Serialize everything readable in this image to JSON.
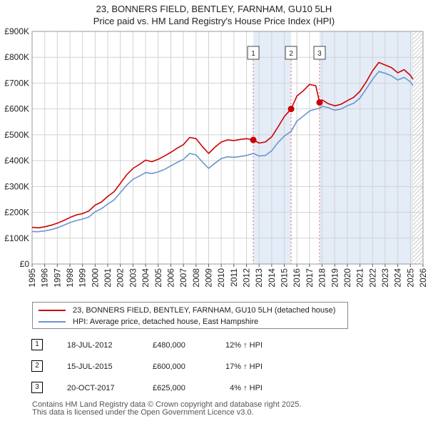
{
  "chart_data": {
    "type": "line",
    "title": "23, BONNERS FIELD, BENTLEY, FARNHAM, GU10 5LH",
    "subtitle": "Price paid vs. HM Land Registry's House Price Index (HPI)",
    "xlim": [
      1995,
      2026
    ],
    "ylim": [
      0,
      900000
    ],
    "y_ticks": [
      0,
      100000,
      200000,
      300000,
      400000,
      500000,
      600000,
      700000,
      800000,
      900000
    ],
    "y_tick_labels": [
      "£0",
      "£100K",
      "£200K",
      "£300K",
      "£400K",
      "£500K",
      "£600K",
      "£700K",
      "£800K",
      "£900K"
    ],
    "x_ticks": [
      1995,
      1996,
      1997,
      1998,
      1999,
      2000,
      2001,
      2002,
      2003,
      2004,
      2005,
      2006,
      2007,
      2008,
      2009,
      2010,
      2011,
      2012,
      2013,
      2014,
      2015,
      2016,
      2017,
      2018,
      2019,
      2020,
      2021,
      2022,
      2023,
      2024,
      2025,
      2026
    ],
    "x_tick_labels": [
      "1995",
      "1996",
      "1997",
      "1998",
      "1999",
      "2000",
      "2001",
      "2002",
      "2003",
      "2004",
      "2005",
      "2006",
      "2007",
      "2008",
      "2009",
      "2010",
      "2011",
      "2012",
      "2013",
      "2014",
      "2015",
      "2016",
      "2017",
      "2018",
      "2019",
      "2020",
      "2021",
      "2022",
      "2023",
      "2024",
      "2025",
      "2026"
    ],
    "grid": true,
    "shaded_periods": [
      [
        2012.54,
        2015.54
      ],
      [
        2017.8,
        2025.2
      ]
    ],
    "hatched_region": [
      2025.2,
      2026
    ],
    "series": [
      {
        "name": "23, BONNERS FIELD, BENTLEY, FARNHAM, GU10 5LH (detached house)",
        "color": "#cc0000",
        "x": [
          1995.0,
          1995.5,
          1996.0,
          1996.5,
          1997.0,
          1997.5,
          1998.0,
          1998.5,
          1999.0,
          1999.5,
          2000.0,
          2000.5,
          2001.0,
          2001.5,
          2002.0,
          2002.5,
          2003.0,
          2003.5,
          2004.0,
          2004.5,
          2005.0,
          2005.5,
          2006.0,
          2006.5,
          2007.0,
          2007.5,
          2008.0,
          2008.5,
          2009.0,
          2009.5,
          2010.0,
          2010.5,
          2011.0,
          2011.5,
          2012.0,
          2012.54,
          2013.0,
          2013.5,
          2014.0,
          2014.5,
          2015.0,
          2015.54,
          2016.0,
          2016.5,
          2017.0,
          2017.5,
          2017.8,
          2018.0,
          2018.5,
          2019.0,
          2019.5,
          2020.0,
          2020.5,
          2021.0,
          2021.5,
          2022.0,
          2022.5,
          2023.0,
          2023.5,
          2024.0,
          2024.5,
          2025.0,
          2025.2
        ],
        "y": [
          142000,
          140000,
          144000,
          150000,
          158000,
          168000,
          180000,
          190000,
          195000,
          205000,
          228000,
          240000,
          262000,
          280000,
          312000,
          345000,
          370000,
          385000,
          402000,
          396000,
          405000,
          418000,
          432000,
          448000,
          462000,
          490000,
          485000,
          455000,
          428000,
          452000,
          472000,
          480000,
          478000,
          482000,
          485000,
          480000,
          468000,
          472000,
          492000,
          530000,
          570000,
          600000,
          650000,
          670000,
          695000,
          690000,
          625000,
          635000,
          620000,
          612000,
          618000,
          632000,
          645000,
          668000,
          705000,
          748000,
          780000,
          770000,
          760000,
          740000,
          752000,
          730000,
          715000
        ]
      },
      {
        "name": "HPI: Average price, detached house, East Hampshire",
        "color": "#6b96cc",
        "x": [
          1995.0,
          1995.5,
          1996.0,
          1996.5,
          1997.0,
          1997.5,
          1998.0,
          1998.5,
          1999.0,
          1999.5,
          2000.0,
          2000.5,
          2001.0,
          2001.5,
          2002.0,
          2002.5,
          2003.0,
          2003.5,
          2004.0,
          2004.5,
          2005.0,
          2005.5,
          2006.0,
          2006.5,
          2007.0,
          2007.5,
          2008.0,
          2008.5,
          2009.0,
          2009.5,
          2010.0,
          2010.5,
          2011.0,
          2011.5,
          2012.0,
          2012.54,
          2013.0,
          2013.5,
          2014.0,
          2014.5,
          2015.0,
          2015.54,
          2016.0,
          2016.5,
          2017.0,
          2017.5,
          2017.8,
          2018.0,
          2018.5,
          2019.0,
          2019.5,
          2020.0,
          2020.5,
          2021.0,
          2021.5,
          2022.0,
          2022.5,
          2023.0,
          2023.5,
          2024.0,
          2024.5,
          2025.0,
          2025.2
        ],
        "y": [
          126000,
          125000,
          128000,
          133000,
          140000,
          150000,
          160000,
          168000,
          174000,
          182000,
          202000,
          214000,
          232000,
          248000,
          276000,
          305000,
          328000,
          340000,
          354000,
          350000,
          356000,
          366000,
          380000,
          393000,
          405000,
          428000,
          422000,
          395000,
          370000,
          390000,
          408000,
          415000,
          413000,
          416000,
          420000,
          428000,
          418000,
          420000,
          438000,
          470000,
          495000,
          513000,
          553000,
          572000,
          592000,
          600000,
          602000,
          610000,
          605000,
          595000,
          600000,
          612000,
          622000,
          642000,
          678000,
          715000,
          745000,
          738000,
          728000,
          712000,
          722000,
          705000,
          690000
        ]
      }
    ],
    "annotations": [
      {
        "label": "1",
        "x": 2012.54,
        "y": 480000
      },
      {
        "label": "2",
        "x": 2015.54,
        "y": 600000
      },
      {
        "label": "3",
        "x": 2017.8,
        "y": 625000
      }
    ]
  },
  "legend": [
    {
      "label": "23, BONNERS FIELD, BENTLEY, FARNHAM, GU10 5LH (detached house)",
      "color": "#cc0000"
    },
    {
      "label": "HPI: Average price, detached house, East Hampshire",
      "color": "#6b96cc"
    }
  ],
  "sales": [
    {
      "num": "1",
      "date": "18-JUL-2012",
      "price": "£480,000",
      "hpi": "12% ↑ HPI"
    },
    {
      "num": "2",
      "date": "15-JUL-2015",
      "price": "£600,000",
      "hpi": "17% ↑ HPI"
    },
    {
      "num": "3",
      "date": "20-OCT-2017",
      "price": "£625,000",
      "hpi": "4% ↑ HPI"
    }
  ],
  "footer": {
    "line1": "Contains HM Land Registry data © Crown copyright and database right 2025.",
    "line2": "This data is licensed under the Open Government Licence v3.0."
  }
}
